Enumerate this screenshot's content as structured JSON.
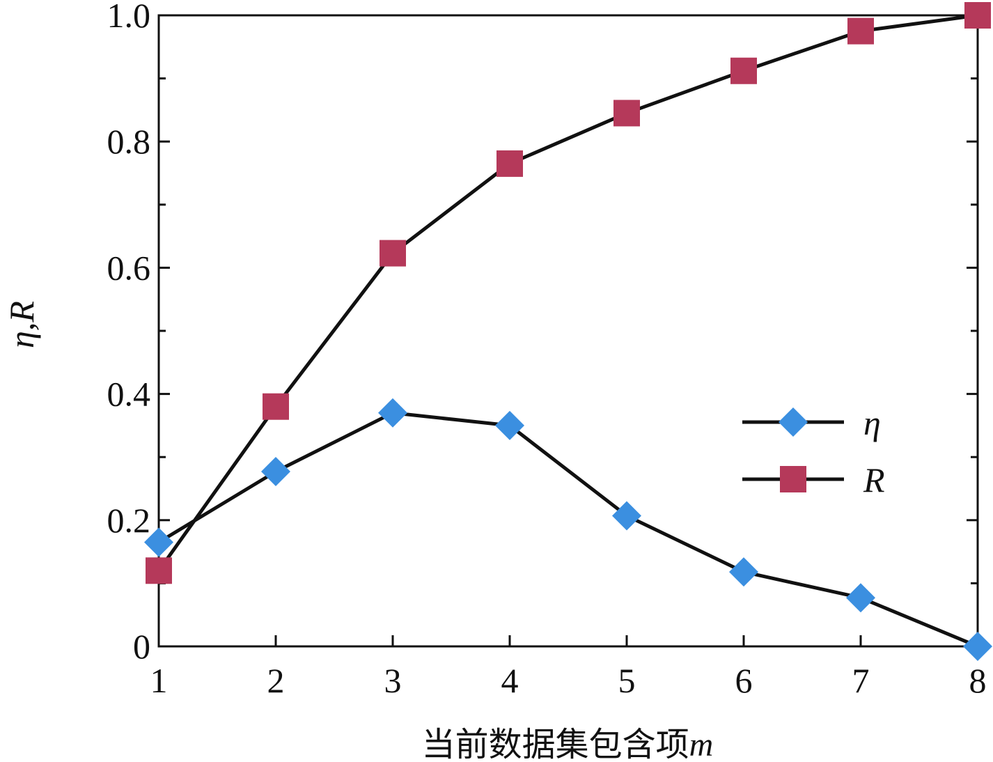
{
  "chart_data": {
    "type": "line",
    "x": [
      1,
      2,
      3,
      4,
      5,
      6,
      7,
      8
    ],
    "xlim": [
      1,
      8
    ],
    "ylim": [
      0,
      1.0
    ],
    "x_ticks": [
      "1",
      "2",
      "3",
      "4",
      "5",
      "6",
      "7",
      "8"
    ],
    "y_ticks": [
      "0",
      "0.2",
      "0.4",
      "0.6",
      "0.8",
      "1.0"
    ],
    "y_tick_values": [
      0,
      0.2,
      0.4,
      0.6,
      0.8,
      1.0
    ],
    "xlabel": "当前数据集包含项",
    "xlabel_var": "m",
    "ylabel": "η,R",
    "grid": false,
    "legend_position": "center-right",
    "series": [
      {
        "name": "η",
        "marker": "diamond",
        "color": "#3b8fe0",
        "values": [
          0.165,
          0.277,
          0.37,
          0.35,
          0.207,
          0.118,
          0.077,
          0.0
        ]
      },
      {
        "name": "R",
        "marker": "square",
        "color": "#b5395a",
        "values": [
          0.12,
          0.38,
          0.623,
          0.765,
          0.845,
          0.912,
          0.975,
          1.0
        ]
      }
    ]
  }
}
